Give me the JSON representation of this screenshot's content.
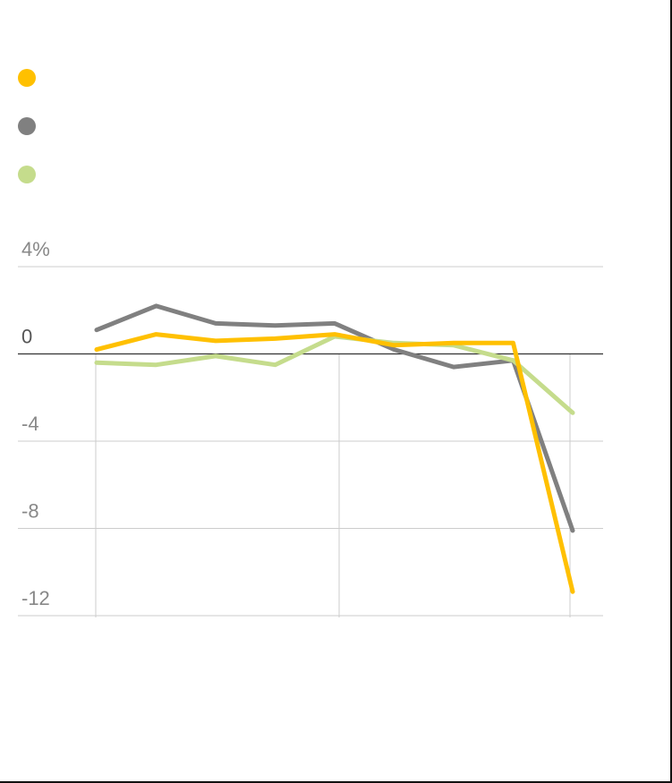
{
  "chart_data": {
    "type": "line",
    "x": [
      1,
      2,
      3,
      4,
      5,
      6,
      7,
      8,
      9
    ],
    "ylim": [
      -12,
      4
    ],
    "y_ticks": [
      4,
      0,
      -4,
      -8,
      -12
    ],
    "y_tick_labels": [
      "4%",
      "0",
      "-4",
      "-8",
      "-12"
    ],
    "grid": true,
    "legend_position": "top-left",
    "series": [
      {
        "color": "#FFC000",
        "values": [
          0.2,
          0.9,
          0.6,
          0.7,
          0.9,
          0.4,
          0.5,
          0.5,
          -10.9
        ]
      },
      {
        "color": "#808080",
        "values": [
          1.1,
          2.2,
          1.4,
          1.3,
          1.4,
          0.2,
          -0.6,
          -0.3,
          -8.1
        ]
      },
      {
        "color": "#C5DC8C",
        "values": [
          -0.4,
          -0.5,
          -0.1,
          -0.5,
          0.8,
          0.5,
          0.4,
          -0.3,
          -2.7
        ]
      }
    ]
  }
}
